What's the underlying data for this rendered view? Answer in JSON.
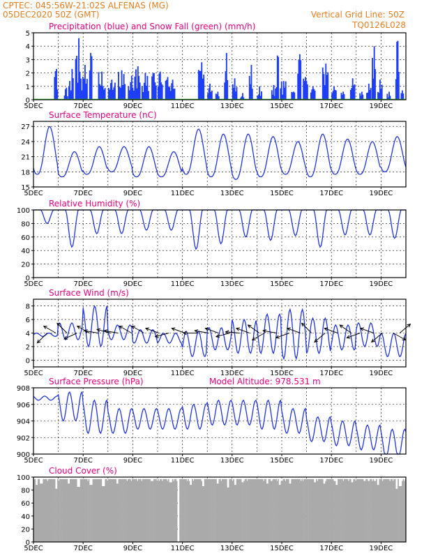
{
  "header": {
    "line1_left": "CPTEC:   045:56W-21:02S  ALFENAS (MG)",
    "line2_left": "05DEC2020 50Z (GMT)",
    "line1_right": "Vertical Grid Line: 50Z",
    "line2_right": "TQ0126L028"
  },
  "colors": {
    "header": "#e67e22",
    "panel_title": "#e6007e",
    "line": "#2233dd",
    "precip": "#1f3ff5",
    "snow": "#22aa22",
    "cloud": "#aaaaaa"
  },
  "x_tick_labels": [
    "5DEC",
    "7DEC",
    "9DEC",
    "11DEC",
    "13DEC",
    "15DEC",
    "17DEC",
    "19DEC"
  ],
  "chart_data": [
    {
      "id": "precip",
      "type": "bar",
      "title": "Precipitation (blue) and Snow Fall (green) (mm/h)",
      "x_start_day": 5,
      "x_end_day": 20,
      "ylim": [
        0,
        5
      ],
      "yticks": [
        0,
        1,
        2,
        3,
        4,
        5
      ],
      "events": [
        [
          5.9,
          2.3,
          0.15
        ],
        [
          6.3,
          0.9,
          0.15
        ],
        [
          6.45,
          1.4,
          0.1
        ],
        [
          6.55,
          2.3,
          0.12
        ],
        [
          6.8,
          4.6,
          0.25
        ],
        [
          7.05,
          2.6,
          0.25
        ],
        [
          7.3,
          3.5,
          0.12
        ],
        [
          7.75,
          2.1,
          0.3
        ],
        [
          8.15,
          1.5,
          0.3
        ],
        [
          8.55,
          2.2,
          0.3
        ],
        [
          8.95,
          1.8,
          0.3
        ],
        [
          9.2,
          2.5,
          0.2
        ],
        [
          9.5,
          2.0,
          0.3
        ],
        [
          9.85,
          2.0,
          0.2
        ],
        [
          10.1,
          2.1,
          0.2
        ],
        [
          10.4,
          1.7,
          0.2
        ],
        [
          10.6,
          1.5,
          0.2
        ],
        [
          11.75,
          2.8,
          0.25
        ],
        [
          12.1,
          1.2,
          0.2
        ],
        [
          12.4,
          0.6,
          0.15
        ],
        [
          12.75,
          3.5,
          0.15
        ],
        [
          13.1,
          1.6,
          0.2
        ],
        [
          13.4,
          0.5,
          0.15
        ],
        [
          13.75,
          2.6,
          0.15
        ],
        [
          14.1,
          1.0,
          0.2
        ],
        [
          14.65,
          1.1,
          0.15
        ],
        [
          14.8,
          3.3,
          0.15
        ],
        [
          15.05,
          1.4,
          0.25
        ],
        [
          15.45,
          0.6,
          0.15
        ],
        [
          15.7,
          3.4,
          0.15
        ],
        [
          15.95,
          1.7,
          0.2
        ],
        [
          16.25,
          1.0,
          0.2
        ],
        [
          16.75,
          2.7,
          0.25
        ],
        [
          17.1,
          1.0,
          0.2
        ],
        [
          17.45,
          0.6,
          0.15
        ],
        [
          17.85,
          1.6,
          0.2
        ],
        [
          18.2,
          0.6,
          0.15
        ],
        [
          18.5,
          1.2,
          0.2
        ],
        [
          18.7,
          4.0,
          0.15
        ],
        [
          18.95,
          1.5,
          0.2
        ],
        [
          19.3,
          0.6,
          0.15
        ],
        [
          19.65,
          4.4,
          0.15
        ],
        [
          19.85,
          0.7,
          0.12
        ]
      ]
    },
    {
      "id": "temp",
      "type": "line",
      "title": "Surface Temperature (nC)",
      "x_start_day": 5,
      "x_end_day": 20,
      "ylim": [
        15,
        28
      ],
      "yticks": [
        15,
        18,
        21,
        24,
        27
      ],
      "daily_min": [
        17.5,
        17.0,
        17.5,
        18.0,
        17.0,
        17.0,
        17.5,
        17.0,
        16.5,
        17.0,
        17.5,
        17.0,
        17.5,
        17.5,
        18.0,
        19.0
      ],
      "daily_max": [
        27.0,
        22.0,
        23.0,
        23.0,
        23.0,
        22.0,
        26.5,
        25.5,
        25.5,
        25.0,
        24.0,
        25.5,
        24.5,
        24.0,
        25.0,
        25.0
      ]
    },
    {
      "id": "rh",
      "type": "line",
      "title": "Relative Humidity (%)",
      "x_start_day": 5,
      "x_end_day": 20,
      "ylim": [
        0,
        100
      ],
      "yticks": [
        0,
        20,
        40,
        60,
        80,
        100
      ],
      "daily_min": [
        80,
        45,
        65,
        65,
        70,
        70,
        42,
        50,
        60,
        55,
        62,
        45,
        63,
        63,
        58,
        60
      ]
    },
    {
      "id": "wind",
      "type": "line",
      "title": "Surface Wind (m/s)",
      "x_start_day": 5,
      "x_end_day": 20,
      "ylim": [
        -1,
        9
      ],
      "yticks": [
        0,
        2,
        4,
        6,
        8
      ],
      "daily_max": [
        4.0,
        5.5,
        8.0,
        5.2,
        4.5,
        4.0,
        4.3,
        4.8,
        6.0,
        6.8,
        7.5,
        6.2,
        5.2,
        5.5,
        4.0,
        4.2
      ],
      "daily_min": [
        3.5,
        3.0,
        2.0,
        3.0,
        2.5,
        2.5,
        0.5,
        1.5,
        1.0,
        1.0,
        0.2,
        1.0,
        1.5,
        2.0,
        0.5,
        2.0
      ],
      "vectors_day_angle": [
        [
          5.55,
          135
        ],
        [
          5.9,
          210
        ],
        [
          6.35,
          225
        ],
        [
          6.75,
          155
        ],
        [
          7.25,
          210
        ],
        [
          7.6,
          190
        ],
        [
          8.1,
          195
        ],
        [
          8.4,
          190
        ],
        [
          8.95,
          210
        ],
        [
          9.45,
          210
        ],
        [
          10.05,
          200
        ],
        [
          10.45,
          165
        ],
        [
          11.1,
          200
        ],
        [
          11.6,
          180
        ],
        [
          12.05,
          190
        ],
        [
          12.45,
          200
        ],
        [
          12.9,
          165
        ],
        [
          13.3,
          185
        ],
        [
          13.7,
          200
        ],
        [
          14.1,
          215
        ],
        [
          14.3,
          150
        ],
        [
          14.8,
          190
        ],
        [
          15.3,
          160
        ],
        [
          15.75,
          200
        ],
        [
          16.2,
          225
        ],
        [
          16.75,
          140
        ],
        [
          17.25,
          200
        ],
        [
          17.8,
          215
        ],
        [
          18.15,
          160
        ],
        [
          18.7,
          200
        ],
        [
          19.05,
          140
        ],
        [
          19.5,
          30
        ],
        [
          19.75,
          320
        ]
      ]
    },
    {
      "id": "pres",
      "type": "line",
      "title": "Surface Pressure (hPa)",
      "annotation": "Model Altitude: 978.531  m",
      "x_start_day": 5,
      "x_end_day": 20,
      "ylim": [
        900,
        908
      ],
      "yticks": [
        900,
        902,
        904,
        906,
        908
      ],
      "daily_max": [
        907.0,
        907.5,
        906.5,
        905.5,
        905.5,
        905.5,
        906.0,
        906.5,
        906.5,
        906.5,
        905.5,
        904.5,
        904.0,
        903.5,
        903.0,
        902.0
      ],
      "daily_min": [
        906.5,
        904.0,
        902.5,
        902.5,
        903.0,
        903.0,
        903.0,
        903.5,
        903.5,
        903.0,
        902.5,
        901.5,
        901.0,
        900.5,
        899.5,
        899.5
      ]
    },
    {
      "id": "cloud",
      "type": "bar",
      "title": "Cloud Cover (%)",
      "x_start_day": 5,
      "x_end_day": 20,
      "ylim": [
        0,
        100
      ],
      "yticks": [
        0,
        20,
        40,
        60,
        80,
        100
      ],
      "typical_cover": 97,
      "dips": [
        [
          5.1,
          88
        ],
        [
          5.3,
          90
        ],
        [
          5.9,
          82
        ],
        [
          6.4,
          90
        ],
        [
          6.8,
          85
        ],
        [
          7.3,
          88
        ],
        [
          7.8,
          86
        ],
        [
          8.35,
          90
        ],
        [
          10.5,
          92
        ],
        [
          10.82,
          0
        ],
        [
          11.3,
          88
        ],
        [
          11.8,
          86
        ],
        [
          12.4,
          90
        ],
        [
          12.8,
          84
        ],
        [
          13.1,
          88
        ],
        [
          13.4,
          92
        ],
        [
          14.4,
          90
        ],
        [
          14.9,
          88
        ],
        [
          15.3,
          90
        ],
        [
          16.3,
          92
        ],
        [
          16.7,
          90
        ],
        [
          17.2,
          88
        ],
        [
          17.8,
          92
        ],
        [
          18.3,
          94
        ],
        [
          18.85,
          88
        ],
        [
          19.6,
          82
        ],
        [
          19.75,
          86
        ]
      ]
    }
  ]
}
